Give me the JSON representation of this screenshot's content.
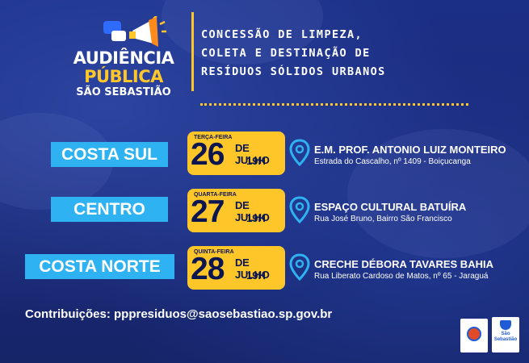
{
  "header": {
    "logo_line1": "AUDIÊNCIA",
    "logo_line2": "PÚBLICA",
    "logo_line3": "SÃO SEBASTIÃO",
    "title_lines": [
      "CONCESSÃO DE LIMPEZA,",
      "COLETA E DESTINAÇÃO DE",
      "RESÍDUOS SÓLIDOS URBANOS"
    ]
  },
  "events": [
    {
      "region": "COSTA SUL",
      "weekday": "TERÇA-FEIRA",
      "day": "26",
      "month": "DE JULHO",
      "time": "19H",
      "venue": "E.M. PROF. ANTONIO LUIZ MONTEIRO",
      "address": "Estrada do Cascalho, nº 1409 - Boiçucanga"
    },
    {
      "region": "CENTRO",
      "weekday": "QUARTA-FEIRA",
      "day": "27",
      "month": "DE JULHO",
      "time": "19H",
      "venue": "ESPAÇO CULTURAL BATUÍRA",
      "address": "Rua José Bruno, Bairro São Francisco"
    },
    {
      "region": "COSTA NORTE",
      "weekday": "QUINTA-FEIRA",
      "day": "28",
      "month": "DE JULHO",
      "time": "19H",
      "venue": "CRECHE DÉBORA TAVARES BAHIA",
      "address": "Rua Liberato Cardoso de Matos, nº 65 - Jaraguá"
    }
  ],
  "footer": {
    "contact": "Contribuições: pppresiduos@saosebastiao.sp.gov.br",
    "city_logo_line1": "São",
    "city_logo_line2": "Sebastião"
  },
  "icons": {
    "location": "map-pin-icon",
    "megaphone": "megaphone-icon"
  },
  "colors": {
    "background": "#1b2f86",
    "accent_yellow": "#ffc629",
    "region_blue": "#2fb2f2",
    "date_text": "#0b1650"
  }
}
